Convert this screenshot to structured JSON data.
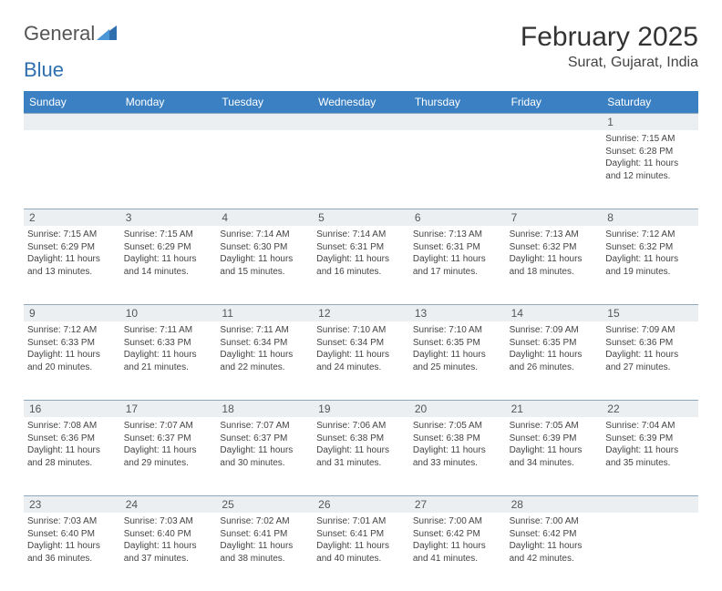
{
  "logo": {
    "text1": "General",
    "text2": "Blue"
  },
  "title": "February 2025",
  "location": "Surat, Gujarat, India",
  "colors": {
    "header_bg": "#3a80c3",
    "header_text": "#ffffff",
    "strip_bg": "#eceff1",
    "strip_border": "#90a8bc",
    "body_text": "#444444",
    "logo_accent": "#2f6fb0"
  },
  "day_headers": [
    "Sunday",
    "Monday",
    "Tuesday",
    "Wednesday",
    "Thursday",
    "Friday",
    "Saturday"
  ],
  "weeks": [
    {
      "nums": [
        "",
        "",
        "",
        "",
        "",
        "",
        "1"
      ],
      "cells": [
        null,
        null,
        null,
        null,
        null,
        null,
        {
          "sunrise": "Sunrise: 7:15 AM",
          "sunset": "Sunset: 6:28 PM",
          "day1": "Daylight: 11 hours",
          "day2": "and 12 minutes."
        }
      ]
    },
    {
      "nums": [
        "2",
        "3",
        "4",
        "5",
        "6",
        "7",
        "8"
      ],
      "cells": [
        {
          "sunrise": "Sunrise: 7:15 AM",
          "sunset": "Sunset: 6:29 PM",
          "day1": "Daylight: 11 hours",
          "day2": "and 13 minutes."
        },
        {
          "sunrise": "Sunrise: 7:15 AM",
          "sunset": "Sunset: 6:29 PM",
          "day1": "Daylight: 11 hours",
          "day2": "and 14 minutes."
        },
        {
          "sunrise": "Sunrise: 7:14 AM",
          "sunset": "Sunset: 6:30 PM",
          "day1": "Daylight: 11 hours",
          "day2": "and 15 minutes."
        },
        {
          "sunrise": "Sunrise: 7:14 AM",
          "sunset": "Sunset: 6:31 PM",
          "day1": "Daylight: 11 hours",
          "day2": "and 16 minutes."
        },
        {
          "sunrise": "Sunrise: 7:13 AM",
          "sunset": "Sunset: 6:31 PM",
          "day1": "Daylight: 11 hours",
          "day2": "and 17 minutes."
        },
        {
          "sunrise": "Sunrise: 7:13 AM",
          "sunset": "Sunset: 6:32 PM",
          "day1": "Daylight: 11 hours",
          "day2": "and 18 minutes."
        },
        {
          "sunrise": "Sunrise: 7:12 AM",
          "sunset": "Sunset: 6:32 PM",
          "day1": "Daylight: 11 hours",
          "day2": "and 19 minutes."
        }
      ]
    },
    {
      "nums": [
        "9",
        "10",
        "11",
        "12",
        "13",
        "14",
        "15"
      ],
      "cells": [
        {
          "sunrise": "Sunrise: 7:12 AM",
          "sunset": "Sunset: 6:33 PM",
          "day1": "Daylight: 11 hours",
          "day2": "and 20 minutes."
        },
        {
          "sunrise": "Sunrise: 7:11 AM",
          "sunset": "Sunset: 6:33 PM",
          "day1": "Daylight: 11 hours",
          "day2": "and 21 minutes."
        },
        {
          "sunrise": "Sunrise: 7:11 AM",
          "sunset": "Sunset: 6:34 PM",
          "day1": "Daylight: 11 hours",
          "day2": "and 22 minutes."
        },
        {
          "sunrise": "Sunrise: 7:10 AM",
          "sunset": "Sunset: 6:34 PM",
          "day1": "Daylight: 11 hours",
          "day2": "and 24 minutes."
        },
        {
          "sunrise": "Sunrise: 7:10 AM",
          "sunset": "Sunset: 6:35 PM",
          "day1": "Daylight: 11 hours",
          "day2": "and 25 minutes."
        },
        {
          "sunrise": "Sunrise: 7:09 AM",
          "sunset": "Sunset: 6:35 PM",
          "day1": "Daylight: 11 hours",
          "day2": "and 26 minutes."
        },
        {
          "sunrise": "Sunrise: 7:09 AM",
          "sunset": "Sunset: 6:36 PM",
          "day1": "Daylight: 11 hours",
          "day2": "and 27 minutes."
        }
      ]
    },
    {
      "nums": [
        "16",
        "17",
        "18",
        "19",
        "20",
        "21",
        "22"
      ],
      "cells": [
        {
          "sunrise": "Sunrise: 7:08 AM",
          "sunset": "Sunset: 6:36 PM",
          "day1": "Daylight: 11 hours",
          "day2": "and 28 minutes."
        },
        {
          "sunrise": "Sunrise: 7:07 AM",
          "sunset": "Sunset: 6:37 PM",
          "day1": "Daylight: 11 hours",
          "day2": "and 29 minutes."
        },
        {
          "sunrise": "Sunrise: 7:07 AM",
          "sunset": "Sunset: 6:37 PM",
          "day1": "Daylight: 11 hours",
          "day2": "and 30 minutes."
        },
        {
          "sunrise": "Sunrise: 7:06 AM",
          "sunset": "Sunset: 6:38 PM",
          "day1": "Daylight: 11 hours",
          "day2": "and 31 minutes."
        },
        {
          "sunrise": "Sunrise: 7:05 AM",
          "sunset": "Sunset: 6:38 PM",
          "day1": "Daylight: 11 hours",
          "day2": "and 33 minutes."
        },
        {
          "sunrise": "Sunrise: 7:05 AM",
          "sunset": "Sunset: 6:39 PM",
          "day1": "Daylight: 11 hours",
          "day2": "and 34 minutes."
        },
        {
          "sunrise": "Sunrise: 7:04 AM",
          "sunset": "Sunset: 6:39 PM",
          "day1": "Daylight: 11 hours",
          "day2": "and 35 minutes."
        }
      ]
    },
    {
      "nums": [
        "23",
        "24",
        "25",
        "26",
        "27",
        "28",
        ""
      ],
      "cells": [
        {
          "sunrise": "Sunrise: 7:03 AM",
          "sunset": "Sunset: 6:40 PM",
          "day1": "Daylight: 11 hours",
          "day2": "and 36 minutes."
        },
        {
          "sunrise": "Sunrise: 7:03 AM",
          "sunset": "Sunset: 6:40 PM",
          "day1": "Daylight: 11 hours",
          "day2": "and 37 minutes."
        },
        {
          "sunrise": "Sunrise: 7:02 AM",
          "sunset": "Sunset: 6:41 PM",
          "day1": "Daylight: 11 hours",
          "day2": "and 38 minutes."
        },
        {
          "sunrise": "Sunrise: 7:01 AM",
          "sunset": "Sunset: 6:41 PM",
          "day1": "Daylight: 11 hours",
          "day2": "and 40 minutes."
        },
        {
          "sunrise": "Sunrise: 7:00 AM",
          "sunset": "Sunset: 6:42 PM",
          "day1": "Daylight: 11 hours",
          "day2": "and 41 minutes."
        },
        {
          "sunrise": "Sunrise: 7:00 AM",
          "sunset": "Sunset: 6:42 PM",
          "day1": "Daylight: 11 hours",
          "day2": "and 42 minutes."
        },
        null
      ]
    }
  ]
}
